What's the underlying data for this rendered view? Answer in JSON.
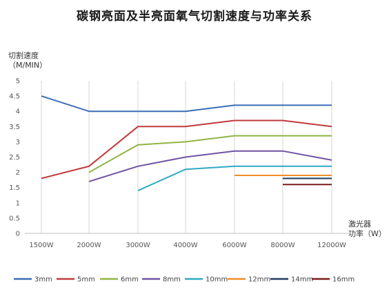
{
  "chart_data": {
    "type": "line",
    "title": "碳钢亮面及半亮面氧气切割速度与功率关系",
    "ylabel": [
      "切割速度",
      "（M/MIN）"
    ],
    "xlabel": [
      "激光器",
      "功率（W）"
    ],
    "categories": [
      "1500W",
      "2000W",
      "3000W",
      "4000W",
      "6000W",
      "8000W",
      "12000W"
    ],
    "ylim": [
      0,
      5
    ],
    "yticks": [
      "0",
      "0.5",
      "1",
      "1.5",
      "2",
      "2.5",
      "3",
      "3.5",
      "4",
      "4.5",
      "5"
    ],
    "grid": "vertical",
    "legend_position": "bottom",
    "series": [
      {
        "name": "3mm",
        "color": "#3a6db5",
        "values": [
          4.5,
          4.0,
          4.0,
          4.0,
          4.2,
          4.2,
          4.2
        ]
      },
      {
        "name": "5mm",
        "color": "#c0393b",
        "values": [
          1.8,
          2.2,
          3.5,
          3.5,
          3.7,
          3.7,
          3.5
        ]
      },
      {
        "name": "6mm",
        "color": "#8fb443",
        "values": [
          null,
          2.0,
          2.9,
          3.0,
          3.2,
          3.2,
          3.2
        ]
      },
      {
        "name": "8mm",
        "color": "#7052a3",
        "values": [
          null,
          1.7,
          2.2,
          2.5,
          2.7,
          2.7,
          2.4
        ]
      },
      {
        "name": "10mm",
        "color": "#2fa9c4",
        "values": [
          null,
          null,
          1.4,
          2.1,
          2.2,
          2.2,
          2.2
        ]
      },
      {
        "name": "12mm",
        "color": "#f28c28",
        "values": [
          null,
          null,
          null,
          null,
          1.9,
          1.9,
          1.9
        ]
      },
      {
        "name": "14mm",
        "color": "#1f3b60",
        "values": [
          null,
          null,
          null,
          null,
          null,
          1.8,
          1.8
        ]
      },
      {
        "name": "16mm",
        "color": "#7a1a1a",
        "values": [
          null,
          null,
          null,
          null,
          null,
          1.6,
          1.6
        ]
      }
    ]
  }
}
